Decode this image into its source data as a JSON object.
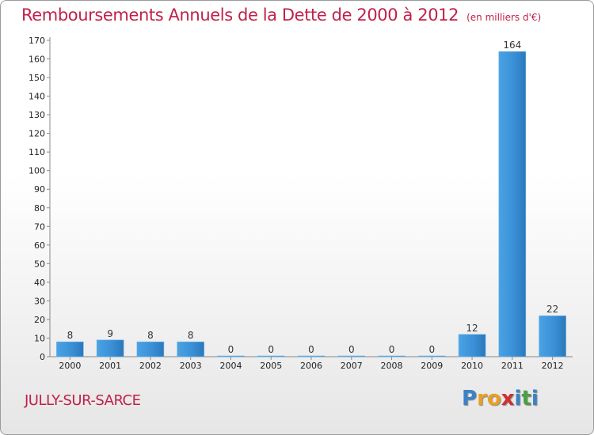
{
  "header": {
    "title": "Remboursements Annuels de la Dette de 2000 à 2012",
    "subtitle": "(en milliers d'€)"
  },
  "footer": {
    "city": "JULLY-SUR-SARCE",
    "logo_letters": [
      "P",
      "r",
      "o",
      "x",
      "i",
      "t",
      "i"
    ],
    "logo_colors": [
      "#3a82c8",
      "#e8a020",
      "#e8a020",
      "#d03030",
      "#3a82c8",
      "#4aa040",
      "#3a82c8"
    ]
  },
  "chart_data": {
    "type": "bar",
    "title": "Remboursements Annuels de la Dette de 2000 à 2012",
    "subtitle": "(en milliers d'€)",
    "categories": [
      "2000",
      "2001",
      "2002",
      "2003",
      "2004",
      "2005",
      "2006",
      "2007",
      "2008",
      "2009",
      "2010",
      "2011",
      "2012"
    ],
    "values": [
      8,
      9,
      8,
      8,
      0,
      0,
      0,
      0,
      0,
      0,
      12,
      164,
      22
    ],
    "ylim": [
      0,
      170
    ],
    "yticks": [
      0,
      10,
      20,
      30,
      40,
      50,
      60,
      70,
      80,
      90,
      100,
      110,
      120,
      130,
      140,
      150,
      160,
      170
    ],
    "xlabel": "",
    "ylabel": "",
    "bar_color": "#3a8fd4",
    "grid": false,
    "legend": "none"
  }
}
